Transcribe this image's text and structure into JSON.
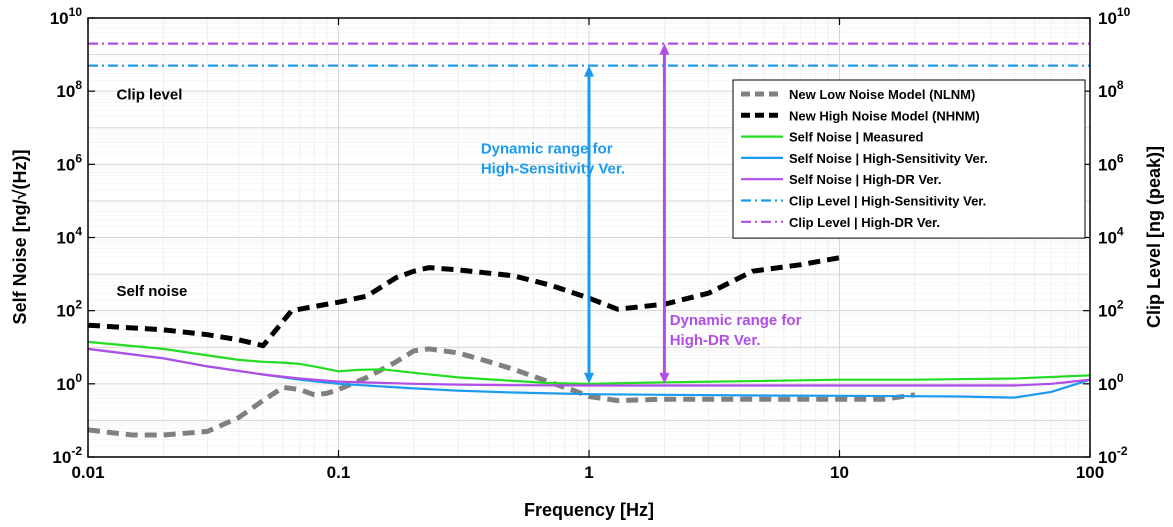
{
  "chart_data": {
    "type": "line",
    "xscale": "log",
    "yscale": "log",
    "xlim": [
      0.01,
      100
    ],
    "ylim_left": [
      0.01,
      10000000000
    ],
    "ylim_right": [
      0.01,
      10000000000
    ],
    "xlabel": "Frequency [Hz]",
    "ylabel_left": "Self Noise [ng/√(Hz)]",
    "ylabel_right": "Clip Level [ng (peak)]",
    "grid": true,
    "legend_position": "top-right",
    "x_ticks": [
      {
        "value": 0.01,
        "label": "0.01"
      },
      {
        "value": 0.1,
        "label": "0.1"
      },
      {
        "value": 1,
        "label": "1"
      },
      {
        "value": 10,
        "label": "10"
      },
      {
        "value": 100,
        "label": "100"
      }
    ],
    "y_ticks": [
      {
        "value": 0.01,
        "base": "10",
        "exp": "-2"
      },
      {
        "value": 1,
        "base": "10",
        "exp": "0"
      },
      {
        "value": 100,
        "base": "10",
        "exp": "2"
      },
      {
        "value": 10000,
        "base": "10",
        "exp": "4"
      },
      {
        "value": 1000000,
        "base": "10",
        "exp": "6"
      },
      {
        "value": 100000000,
        "base": "10",
        "exp": "8"
      },
      {
        "value": 10000000000,
        "base": "10",
        "exp": "10"
      }
    ],
    "series": [
      {
        "name": "New Low Noise Model (NLNM)",
        "color": "#808080",
        "style": "dashed-thick",
        "x": [
          0.01,
          0.015,
          0.02,
          0.03,
          0.04,
          0.05,
          0.06,
          0.07,
          0.08,
          0.09,
          0.1,
          0.13,
          0.17,
          0.2,
          0.23,
          0.3,
          0.4,
          0.5,
          0.7,
          0.9,
          1,
          1.3,
          2,
          3,
          5,
          7,
          10,
          15,
          20
        ],
        "y": [
          0.055,
          0.04,
          0.04,
          0.05,
          0.12,
          0.35,
          0.8,
          0.7,
          0.5,
          0.55,
          0.7,
          1.5,
          4,
          8,
          9,
          7,
          4,
          2.5,
          1.1,
          0.6,
          0.45,
          0.35,
          0.38,
          0.38,
          0.38,
          0.38,
          0.38,
          0.38,
          0.5
        ]
      },
      {
        "name": "New High Noise Model (NHNM)",
        "color": "#000000",
        "style": "dashed-thick",
        "x": [
          0.01,
          0.02,
          0.03,
          0.04,
          0.05,
          0.065,
          0.08,
          0.1,
          0.13,
          0.17,
          0.2,
          0.23,
          0.3,
          0.5,
          0.7,
          1,
          1.3,
          2,
          3,
          4.5,
          7,
          10
        ],
        "y": [
          40,
          30,
          22,
          16,
          11,
          100,
          130,
          170,
          250,
          800,
          1200,
          1500,
          1300,
          900,
          500,
          220,
          110,
          150,
          300,
          1200,
          1800,
          2800
        ]
      },
      {
        "name": "Self Noise | Measured",
        "color": "#22dd22",
        "style": "solid",
        "x": [
          0.01,
          0.02,
          0.03,
          0.04,
          0.05,
          0.06,
          0.07,
          0.08,
          0.1,
          0.12,
          0.15,
          0.2,
          0.3,
          0.5,
          0.7,
          1,
          2,
          5,
          10,
          20,
          50,
          100
        ],
        "y": [
          14,
          9,
          6,
          4.5,
          4,
          3.8,
          3.5,
          3,
          2.2,
          2.4,
          2.5,
          2,
          1.5,
          1.2,
          1.05,
          1,
          1.1,
          1.2,
          1.3,
          1.3,
          1.4,
          1.7
        ]
      },
      {
        "name": "Self Noise | High-Sensitivity Ver.",
        "color": "#1a9bef",
        "style": "solid",
        "x": [
          0.01,
          0.02,
          0.03,
          0.05,
          0.07,
          0.1,
          0.2,
          0.3,
          0.5,
          1,
          2,
          5,
          10,
          20,
          30,
          50,
          70,
          100
        ],
        "y": [
          9,
          5,
          3,
          1.8,
          1.3,
          1,
          0.75,
          0.65,
          0.58,
          0.52,
          0.5,
          0.48,
          0.47,
          0.46,
          0.45,
          0.42,
          0.6,
          1.3
        ]
      },
      {
        "name": "Self Noise | High-DR Ver.",
        "color": "#b04ee6",
        "style": "solid",
        "x": [
          0.01,
          0.02,
          0.03,
          0.05,
          0.07,
          0.1,
          0.2,
          0.3,
          0.5,
          1,
          2,
          5,
          10,
          20,
          50,
          70,
          100
        ],
        "y": [
          9,
          5,
          3,
          1.8,
          1.4,
          1.15,
          1.0,
          0.95,
          0.92,
          0.9,
          0.9,
          0.9,
          0.9,
          0.9,
          0.9,
          1.0,
          1.3
        ]
      },
      {
        "name": "Clip Level | High-Sensitivity Ver.",
        "color": "#1a9bef",
        "style": "dashdot",
        "x": [
          0.01,
          100
        ],
        "y": [
          500000000,
          500000000
        ]
      },
      {
        "name": "Clip Level | High-DR Ver.",
        "color": "#b04ee6",
        "style": "dashdot",
        "x": [
          0.01,
          100
        ],
        "y": [
          2000000000,
          2000000000
        ]
      }
    ],
    "annotations": [
      {
        "text": "Clip level",
        "color": "#000000",
        "x": 0.013,
        "y": 60000000
      },
      {
        "text": "Self noise",
        "color": "#000000",
        "x": 0.013,
        "y": 250
      },
      {
        "text_lines": [
          "Dynamic range for",
          "High-Sensitivity Ver."
        ],
        "color": "#1a9bef",
        "x": 0.37,
        "y": 2000000
      },
      {
        "text_lines": [
          "Dynamic range for",
          "High-DR Ver."
        ],
        "color": "#b04ee6",
        "x": 2.1,
        "y": 40
      }
    ],
    "arrows": [
      {
        "name": "arrow-dynamic-range-high-sensitivity",
        "color": "#1a9bef",
        "x": 1,
        "y_from": 1,
        "y_to": 500000000
      },
      {
        "name": "arrow-dynamic-range-high-dr",
        "color": "#b04ee6",
        "x": 2,
        "y_from": 1,
        "y_to": 2000000000
      }
    ]
  }
}
